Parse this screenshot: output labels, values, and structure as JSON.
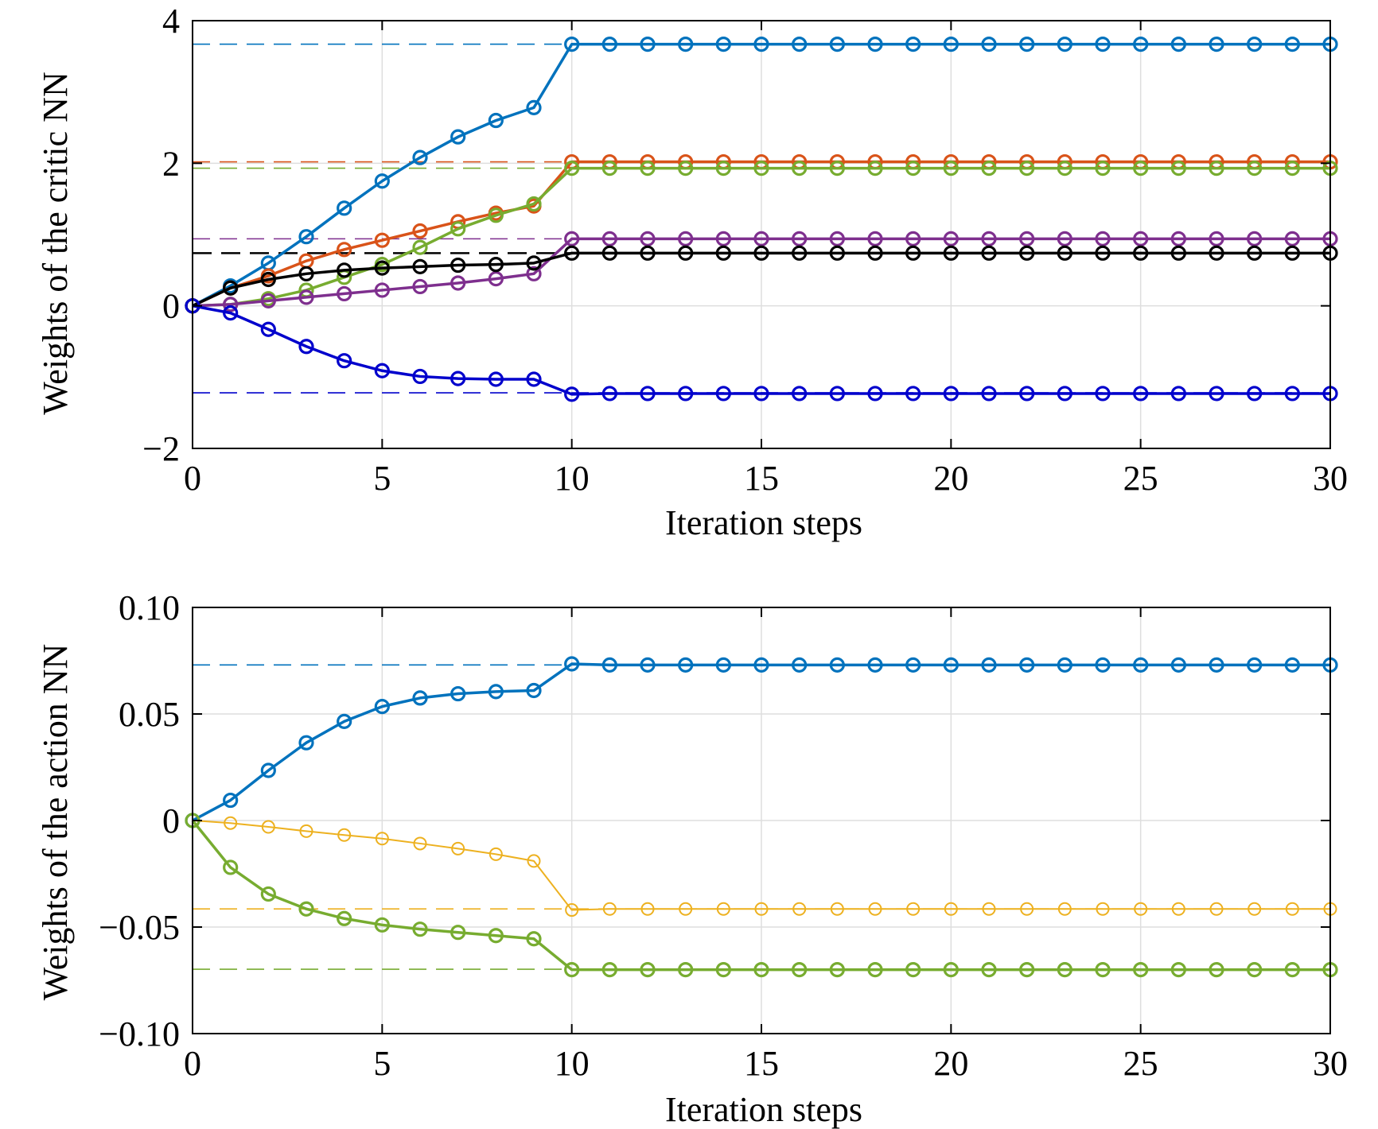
{
  "chart_data": [
    {
      "type": "line",
      "title": "",
      "xlabel": "Iteration steps",
      "ylabel": "Weights of the critic NN",
      "xlim": [
        0,
        30
      ],
      "ylim": [
        -2,
        4
      ],
      "xticks": [
        0,
        5,
        10,
        15,
        20,
        25,
        30
      ],
      "xtick_labels": [
        "0",
        "5",
        "10",
        "15",
        "20",
        "25",
        "30"
      ],
      "yticks": [
        -2,
        0,
        2,
        4
      ],
      "ytick_labels": [
        "−2",
        "0",
        "2",
        "4"
      ],
      "grid": true,
      "markers": "circle",
      "x": [
        0,
        1,
        2,
        3,
        4,
        5,
        6,
        7,
        8,
        9,
        10,
        11,
        12,
        13,
        14,
        15,
        16,
        17,
        18,
        19,
        20,
        21,
        22,
        23,
        24,
        25,
        26,
        27,
        28,
        29,
        30
      ],
      "series": [
        {
          "color": "#0072BD",
          "target": 3.67,
          "values": [
            0,
            0.28,
            0.6,
            0.97,
            1.37,
            1.75,
            2.08,
            2.37,
            2.6,
            2.78,
            3.67,
            3.67,
            3.67,
            3.67,
            3.67,
            3.67,
            3.67,
            3.67,
            3.67,
            3.67,
            3.67,
            3.67,
            3.67,
            3.67,
            3.67,
            3.67,
            3.67,
            3.67,
            3.67,
            3.67,
            3.67
          ]
        },
        {
          "color": "#D95319",
          "target": 2.02,
          "values": [
            0,
            0.25,
            0.42,
            0.63,
            0.79,
            0.92,
            1.05,
            1.18,
            1.3,
            1.4,
            2.02,
            2.02,
            2.02,
            2.02,
            2.02,
            2.02,
            2.02,
            2.02,
            2.02,
            2.02,
            2.02,
            2.02,
            2.02,
            2.02,
            2.02,
            2.02,
            2.02,
            2.02,
            2.02,
            2.02,
            2.02
          ]
        },
        {
          "color": "#77AC30",
          "target": 1.93,
          "values": [
            0,
            0.02,
            0.1,
            0.22,
            0.4,
            0.58,
            0.82,
            1.08,
            1.27,
            1.43,
            1.93,
            1.93,
            1.93,
            1.93,
            1.93,
            1.93,
            1.93,
            1.93,
            1.93,
            1.93,
            1.93,
            1.93,
            1.93,
            1.93,
            1.93,
            1.93,
            1.93,
            1.93,
            1.93,
            1.93,
            1.93
          ]
        },
        {
          "color": "#7E2F8E",
          "target": 0.94,
          "values": [
            0,
            0.02,
            0.07,
            0.12,
            0.17,
            0.22,
            0.27,
            0.32,
            0.38,
            0.45,
            0.94,
            0.94,
            0.94,
            0.94,
            0.94,
            0.94,
            0.94,
            0.94,
            0.94,
            0.94,
            0.94,
            0.94,
            0.94,
            0.94,
            0.94,
            0.94,
            0.94,
            0.94,
            0.94,
            0.94,
            0.94
          ]
        },
        {
          "color": "#000000",
          "target": 0.74,
          "values": [
            0,
            0.25,
            0.37,
            0.45,
            0.5,
            0.53,
            0.55,
            0.57,
            0.58,
            0.6,
            0.74,
            0.74,
            0.74,
            0.74,
            0.74,
            0.74,
            0.74,
            0.74,
            0.74,
            0.74,
            0.74,
            0.74,
            0.74,
            0.74,
            0.74,
            0.74,
            0.74,
            0.74,
            0.74,
            0.74,
            0.74
          ]
        },
        {
          "color": "#0000CC",
          "target": -1.22,
          "values": [
            0,
            -0.1,
            -0.33,
            -0.57,
            -0.77,
            -0.91,
            -0.99,
            -1.02,
            -1.03,
            -1.03,
            -1.24,
            -1.23,
            -1.23,
            -1.23,
            -1.23,
            -1.23,
            -1.23,
            -1.23,
            -1.23,
            -1.23,
            -1.23,
            -1.23,
            -1.23,
            -1.23,
            -1.23,
            -1.23,
            -1.23,
            -1.23,
            -1.23,
            -1.23,
            -1.23
          ]
        }
      ]
    },
    {
      "type": "line",
      "title": "",
      "xlabel": "Iteration steps",
      "ylabel": "Weights of the action NN",
      "xlim": [
        0,
        30
      ],
      "ylim": [
        -0.1,
        0.1
      ],
      "xticks": [
        0,
        5,
        10,
        15,
        20,
        25,
        30
      ],
      "xtick_labels": [
        "0",
        "5",
        "10",
        "15",
        "20",
        "25",
        "30"
      ],
      "yticks": [
        -0.1,
        -0.05,
        0,
        0.05,
        0.1
      ],
      "ytick_labels": [
        "−0.10",
        "−0.05",
        "0",
        "0.05",
        "0.10"
      ],
      "grid": true,
      "markers": "circle",
      "x": [
        0,
        1,
        2,
        3,
        4,
        5,
        6,
        7,
        8,
        9,
        10,
        11,
        12,
        13,
        14,
        15,
        16,
        17,
        18,
        19,
        20,
        21,
        22,
        23,
        24,
        25,
        26,
        27,
        28,
        29,
        30
      ],
      "series": [
        {
          "color": "#0072BD",
          "target": 0.073,
          "values": [
            0,
            0.0095,
            0.0235,
            0.0365,
            0.0465,
            0.0535,
            0.0575,
            0.0595,
            0.0605,
            0.061,
            0.0735,
            0.073,
            0.073,
            0.073,
            0.073,
            0.073,
            0.073,
            0.073,
            0.073,
            0.073,
            0.073,
            0.073,
            0.073,
            0.073,
            0.073,
            0.073,
            0.073,
            0.073,
            0.073,
            0.073,
            0.073
          ]
        },
        {
          "color": "#EDB120",
          "target": -0.0415,
          "values": [
            0,
            -0.0012,
            -0.003,
            -0.005,
            -0.0068,
            -0.0085,
            -0.0108,
            -0.0132,
            -0.0158,
            -0.019,
            -0.042,
            -0.0415,
            -0.0415,
            -0.0415,
            -0.0415,
            -0.0415,
            -0.0415,
            -0.0415,
            -0.0415,
            -0.0415,
            -0.0415,
            -0.0415,
            -0.0415,
            -0.0415,
            -0.0415,
            -0.0415,
            -0.0415,
            -0.0415,
            -0.0415,
            -0.0415,
            -0.0415
          ]
        },
        {
          "color": "#77AC30",
          "target": -0.0698,
          "values": [
            0,
            -0.022,
            -0.0345,
            -0.0415,
            -0.046,
            -0.049,
            -0.051,
            -0.0525,
            -0.054,
            -0.0555,
            -0.07,
            -0.07,
            -0.07,
            -0.07,
            -0.07,
            -0.07,
            -0.07,
            -0.07,
            -0.07,
            -0.07,
            -0.07,
            -0.07,
            -0.07,
            -0.07,
            -0.07,
            -0.07,
            -0.07,
            -0.07,
            -0.07,
            -0.07,
            -0.07
          ]
        }
      ]
    }
  ]
}
